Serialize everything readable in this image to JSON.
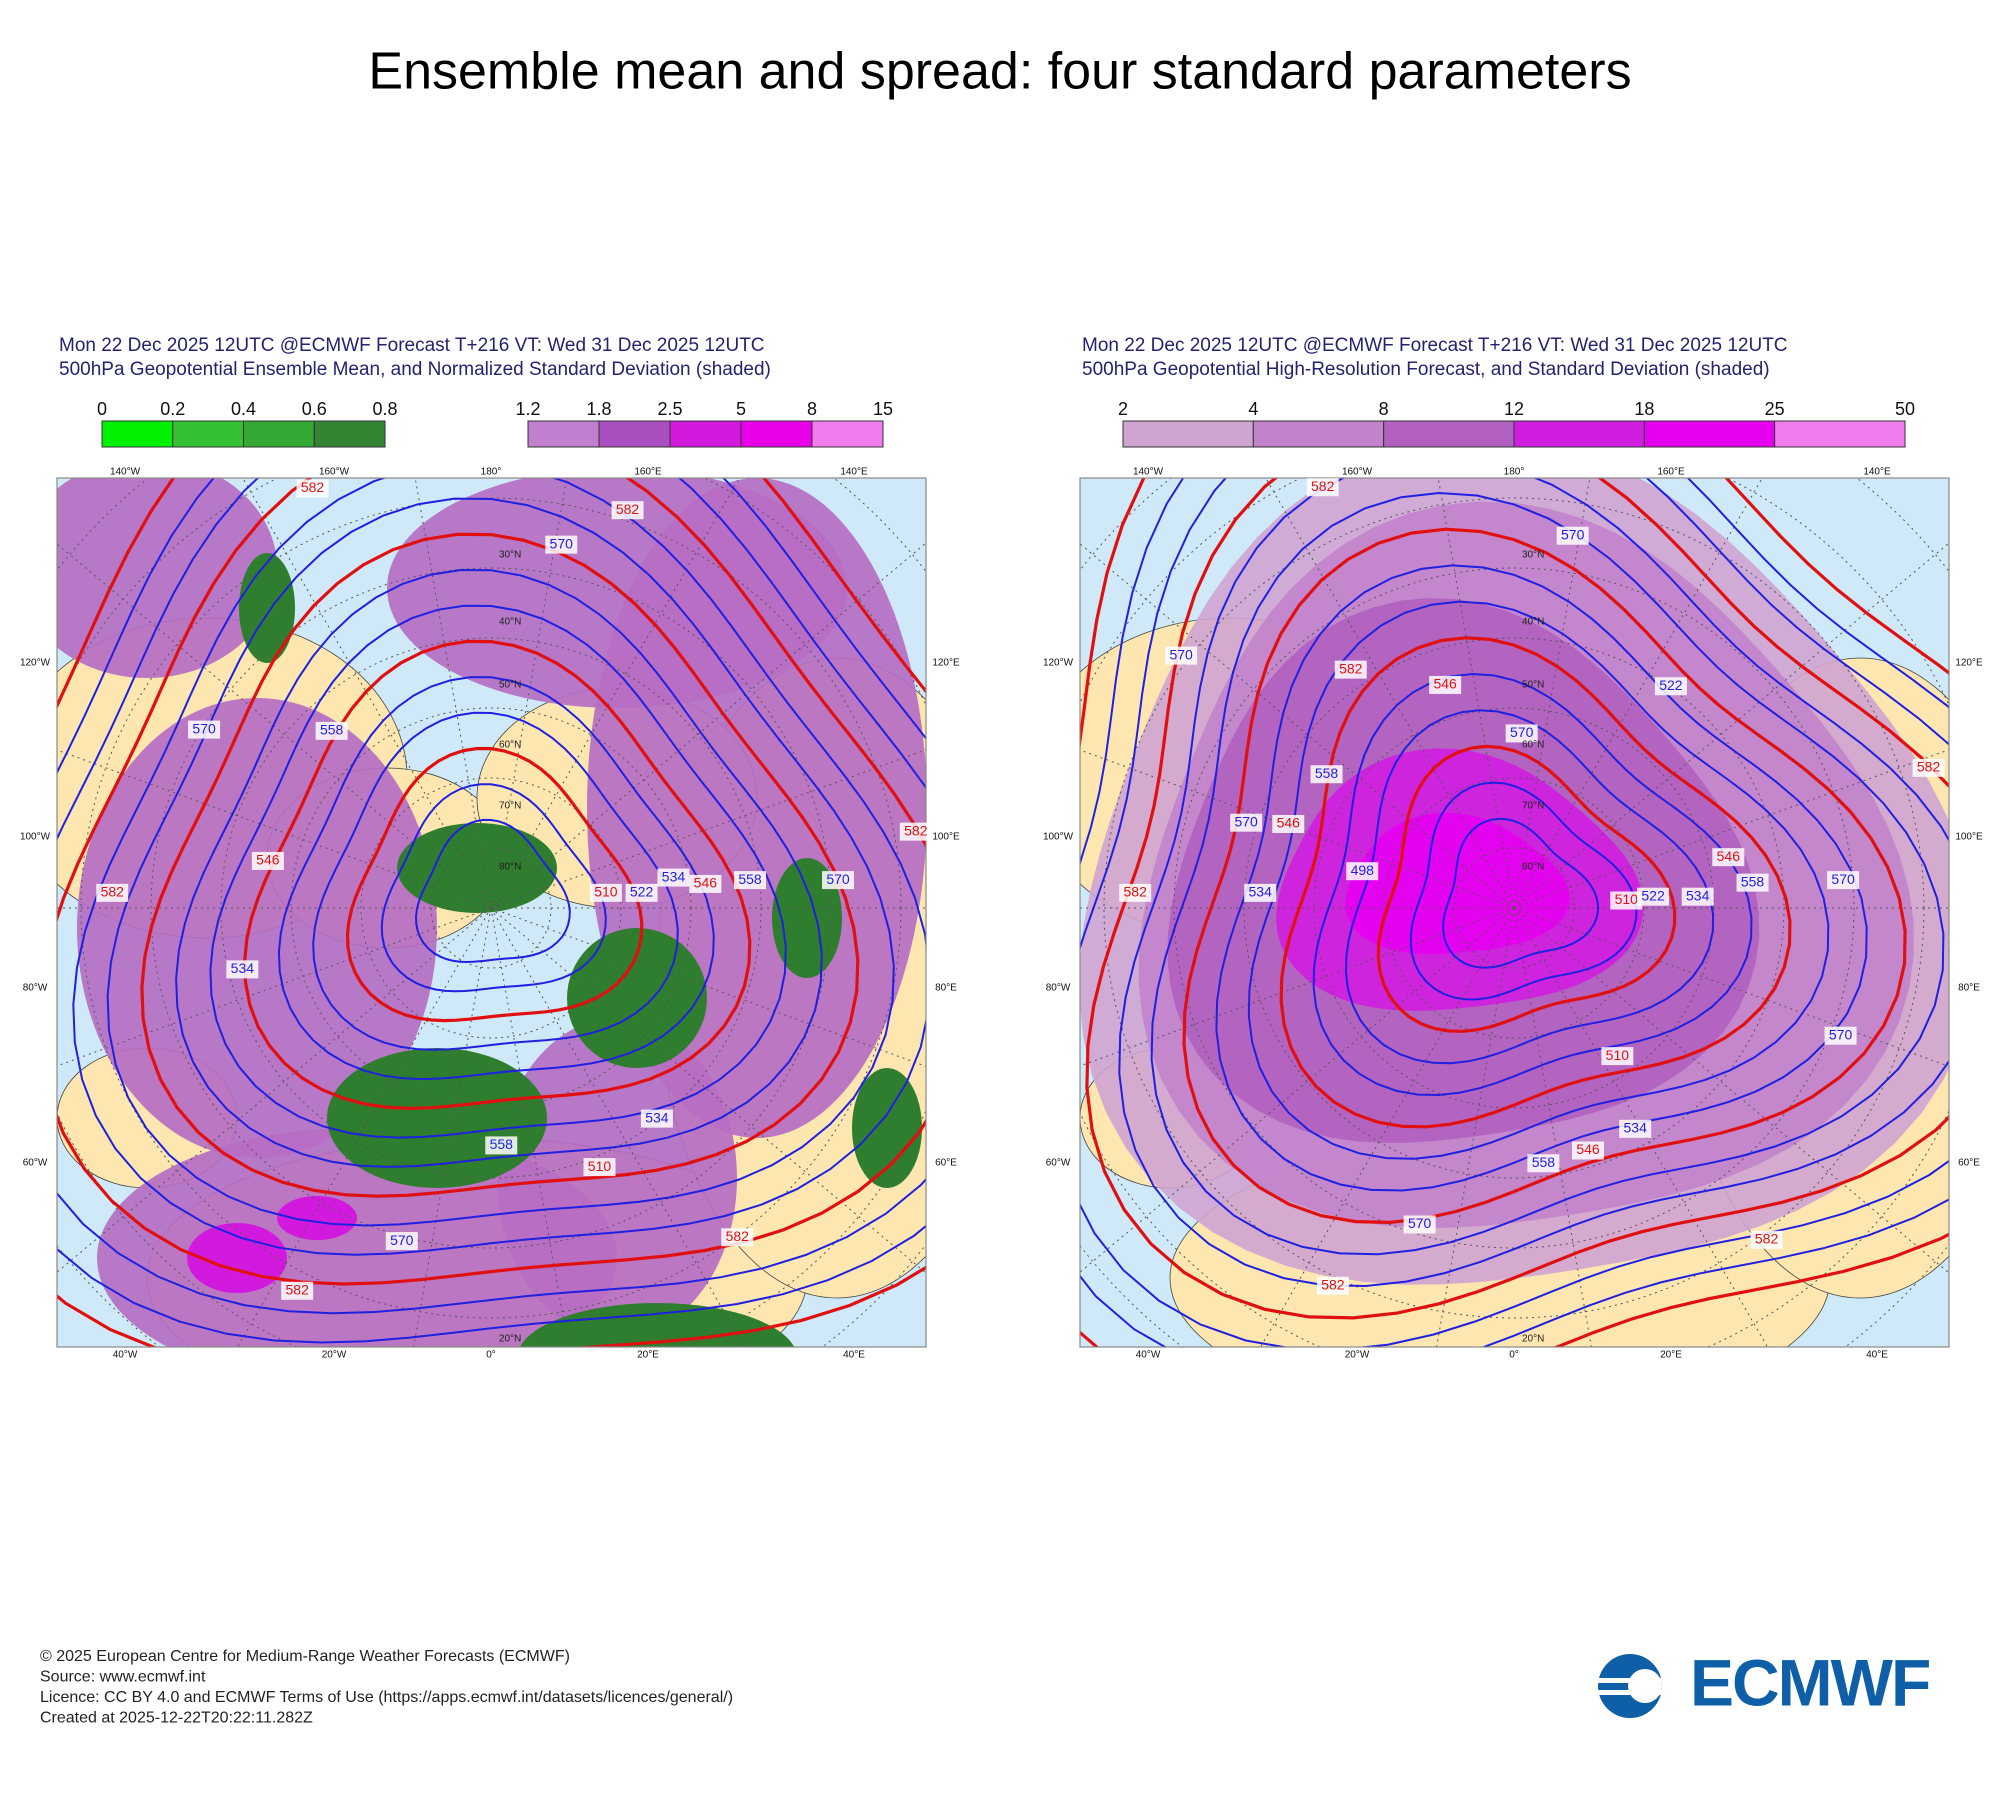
{
  "title": "Ensemble mean and spread: four standard parameters",
  "panels": [
    {
      "header": [
        "Mon 22 Dec 2025 12UTC @ECMWF Forecast T+216 VT: Wed 31 Dec 2025 12UTC",
        "500hPa Geopotential Ensemble Mean, and Normalized Standard Deviation (shaded)"
      ],
      "colorbars": [
        {
          "labels": [
            0,
            0.2,
            0.4,
            0.6,
            0.8
          ],
          "colors": [
            "#00f000",
            "#33c133",
            "#33a833",
            "#338533"
          ]
        },
        {
          "labels": [
            1.2,
            1.8,
            2.5,
            5,
            8,
            15
          ],
          "colors": [
            "#c07fcf",
            "#a94fbf",
            "#d21adf",
            "#e800e8",
            "#f07cf0"
          ]
        }
      ],
      "lon_top": [
        "140°W",
        "160°W",
        "180°",
        "160°E",
        "140°E"
      ],
      "lon_bottom": [
        "40°W",
        "20°W",
        "0°",
        "20°E",
        "40°E"
      ],
      "lon_left": [
        "120°W",
        "100°W",
        "80°W",
        "60°W"
      ],
      "lon_right": [
        "120°E",
        "100°E",
        "80°E",
        "60°E"
      ],
      "lat_labels": [
        "20°N",
        "30°N",
        "40°N",
        "50°N",
        "60°N",
        "70°N",
        "80°N"
      ],
      "contour_labels": [
        582,
        582,
        570,
        570,
        558,
        546,
        534,
        522,
        510,
        534,
        546,
        558,
        570,
        582,
        510,
        534,
        570,
        582,
        582,
        558,
        582
      ]
    },
    {
      "header": [
        "Mon 22 Dec 2025 12UTC @ECMWF Forecast T+216 VT: Wed 31 Dec 2025 12UTC",
        "500hPa Geopotential High-Resolution Forecast, and Standard Deviation (shaded)"
      ],
      "colorbars": [
        {
          "labels": [
            2,
            4,
            8,
            12,
            18,
            25,
            50
          ],
          "colors": [
            "#cfa4d1",
            "#c283cc",
            "#b160c0",
            "#d01de0",
            "#e600f0",
            "#f07cf0"
          ]
        }
      ],
      "lon_top": [
        "140°W",
        "160°W",
        "180°",
        "160°E",
        "140°E"
      ],
      "lon_bottom": [
        "40°W",
        "20°W",
        "0°",
        "20°E",
        "40°E"
      ],
      "lon_left": [
        "120°W",
        "100°W",
        "80°W",
        "60°W"
      ],
      "lon_right": [
        "120°E",
        "100°E",
        "80°E",
        "60°E"
      ],
      "lat_labels": [
        "20°N",
        "30°N",
        "40°N",
        "50°N",
        "60°N",
        "70°N",
        "80°N"
      ],
      "contour_labels": [
        582,
        570,
        570,
        582,
        546,
        522,
        570,
        558,
        546,
        570,
        498,
        534,
        582,
        510,
        522,
        534,
        546,
        558,
        570,
        582,
        510,
        534,
        546,
        558,
        570,
        582,
        582,
        570
      ]
    }
  ],
  "footer": [
    "© 2025 European Centre for Medium-Range Weather Forecasts (ECMWF)",
    "Source: www.ecmwf.int",
    "Licence: CC BY 4.0 and ECMWF Terms of Use (https://apps.ecmwf.int/datasets/licences/general/)",
    "Created at 2025-12-22T20:22:11.282Z"
  ],
  "logo": "ECMWF"
}
